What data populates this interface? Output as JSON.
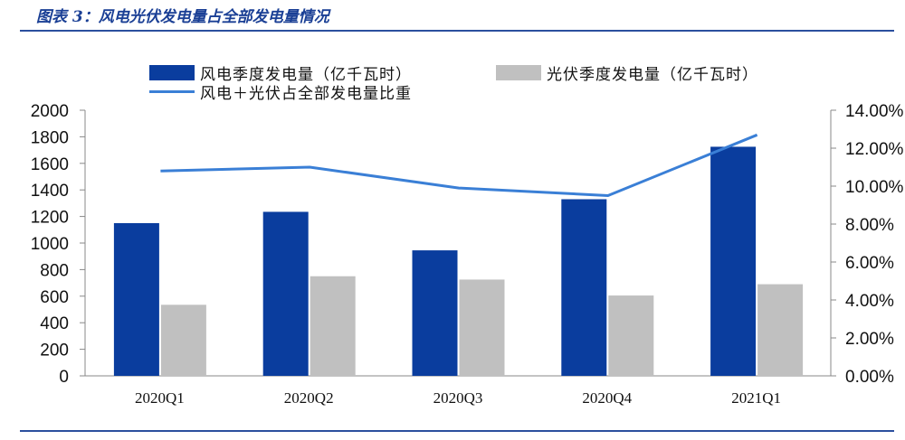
{
  "figure": {
    "title": "图表 3：风电光伏发电量占全部发电量情况"
  },
  "colors": {
    "wind": "#0a3d9e",
    "solar": "#c0c0c0",
    "line": "#3a7fd6",
    "rule": "#2b4f9e"
  },
  "chart_data": {
    "type": "bar",
    "categories": [
      "2020Q1",
      "2020Q2",
      "2020Q3",
      "2020Q4",
      "2021Q1"
    ],
    "series": [
      {
        "name": "风电季度发电量（亿千瓦时）",
        "type": "bar",
        "axis": "left",
        "values": [
          1150,
          1235,
          945,
          1330,
          1725
        ]
      },
      {
        "name": "光伏季度发电量（亿千瓦时）",
        "type": "bar",
        "axis": "left",
        "values": [
          535,
          750,
          725,
          605,
          690
        ]
      },
      {
        "name": "风电＋光伏占全部发电量比重",
        "type": "line",
        "axis": "right",
        "values": [
          10.8,
          11.0,
          9.9,
          9.5,
          12.7
        ]
      }
    ],
    "ylim_left": [
      0,
      2000
    ],
    "yticks_left": [
      "0",
      "200",
      "400",
      "600",
      "800",
      "1000",
      "1200",
      "1400",
      "1600",
      "1800",
      "2000"
    ],
    "ylim_right": [
      0,
      14
    ],
    "yticks_right": [
      "0.00%",
      "2.00%",
      "4.00%",
      "6.00%",
      "8.00%",
      "10.00%",
      "12.00%",
      "14.00%"
    ],
    "legend_position": "top",
    "grid": false
  }
}
